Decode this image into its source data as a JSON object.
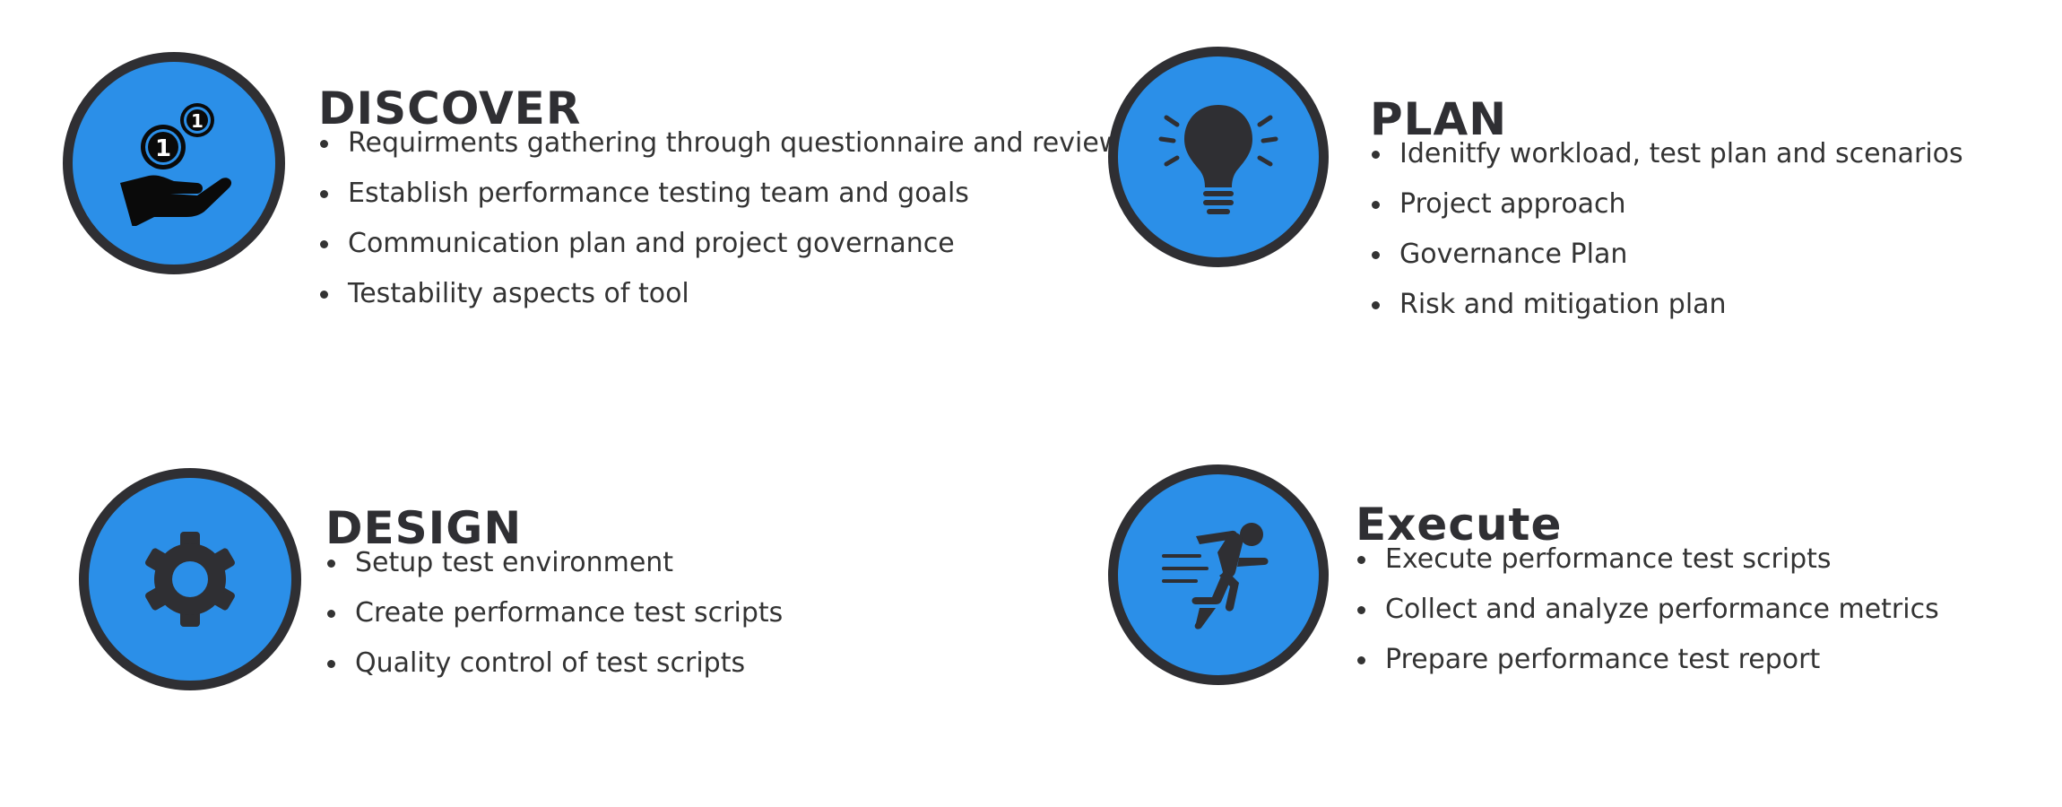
{
  "colors": {
    "circle_fill": "#2b8fe8",
    "circle_border": "#2f2f33",
    "icon": "#2f2f33",
    "text": "#333333"
  },
  "sections": {
    "discover": {
      "icon": "hand-coins-icon",
      "title": "DISCOVER",
      "points": [
        "Requirments gathering through questionnaire and review",
        "Establish performance testing team and goals",
        "Communication plan and project governance",
        "Testability aspects of tool"
      ]
    },
    "plan": {
      "icon": "lightbulb-icon",
      "title": "PLAN",
      "points": [
        "Idenitfy workload, test plan and scenarios",
        "Project approach",
        "Governance Plan",
        "Risk and mitigation plan"
      ]
    },
    "design": {
      "icon": "gear-icon",
      "title": "DESIGN",
      "points": [
        "Setup test environment",
        "Create performance test scripts",
        "Quality control of test scripts"
      ]
    },
    "execute": {
      "icon": "running-person-icon",
      "title": "Execute",
      "points": [
        "Execute performance test scripts",
        "Collect and analyze performance metrics",
        "Prepare performance test report"
      ]
    }
  }
}
